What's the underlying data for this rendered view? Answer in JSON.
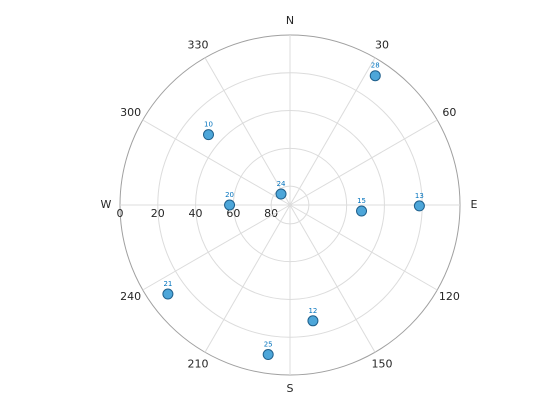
{
  "chart_data": {
    "type": "skyplot",
    "series": [
      {
        "color": "#4da6d9",
        "edge_color": "#1f5f8b",
        "label_color": "#0072bd",
        "labels": [
          "28",
          "10",
          "24",
          "20",
          "15",
          "13",
          "21",
          "12",
          "25"
        ],
        "azimuth": [
          33.4,
          310.8,
          320.7,
          270,
          94.8,
          90.4,
          233.9,
          168.8,
          188.3
        ],
        "elevation": [
          8,
          33,
          82.5,
          58,
          52,
          21.5,
          10,
          27.5,
          10
        ]
      }
    ],
    "elevation_lim": [
      0,
      90
    ],
    "elevation_ticks": [
      0,
      20,
      40,
      60,
      80
    ],
    "azimuth_ticks": [
      {
        "value": 0,
        "label": "N"
      },
      30,
      60,
      {
        "value": 90,
        "label": "E"
      },
      120,
      150,
      {
        "value": 180,
        "label": "S"
      },
      210,
      240,
      {
        "value": 270,
        "label": "W"
      },
      300,
      330
    ],
    "grid": true
  }
}
